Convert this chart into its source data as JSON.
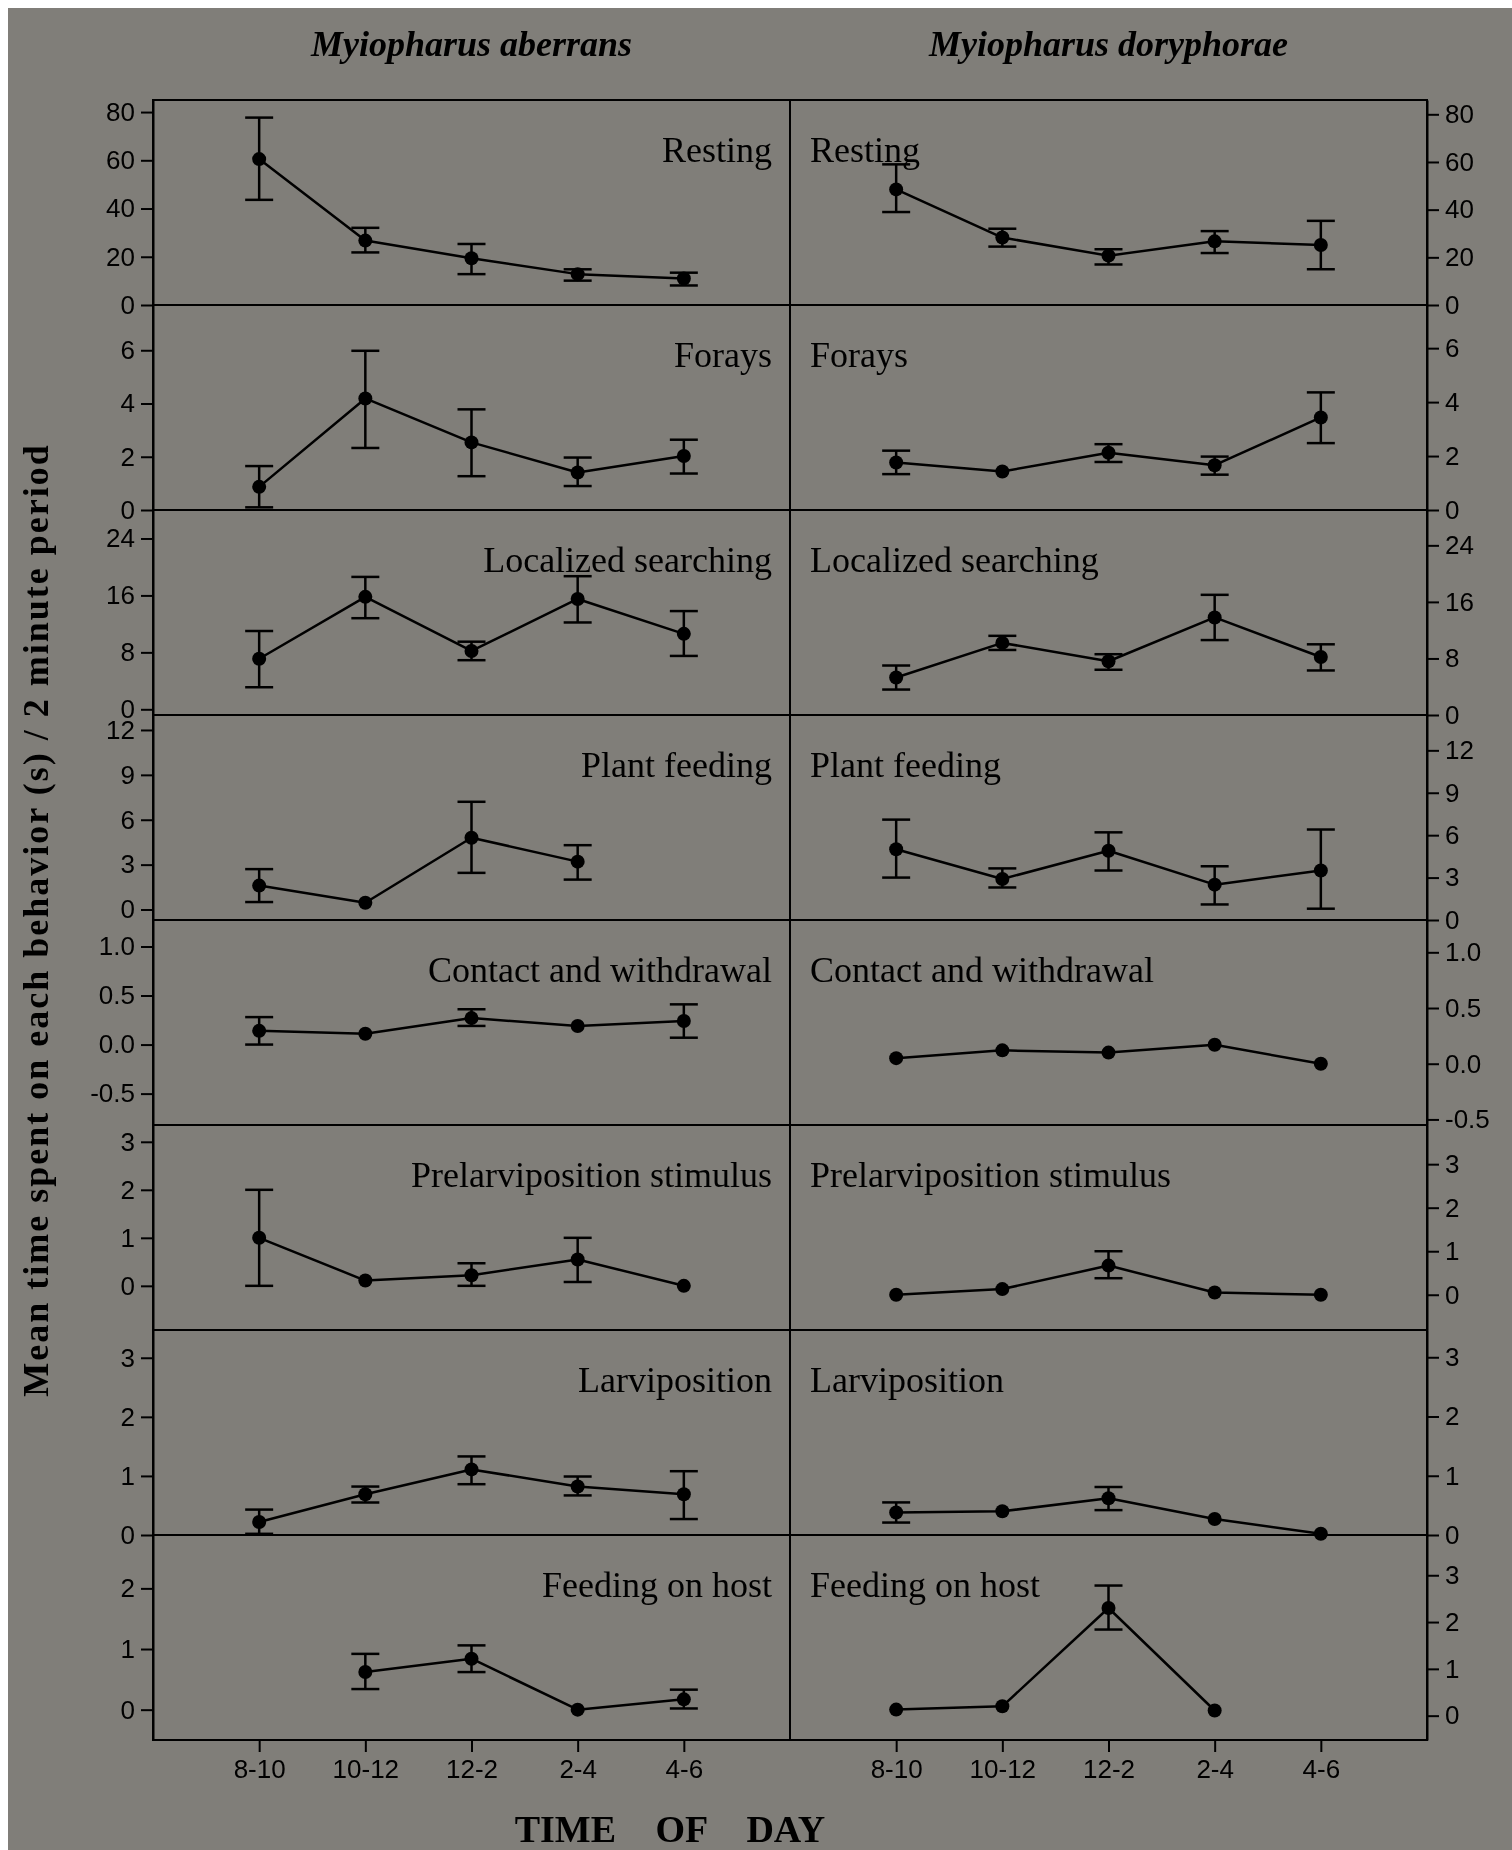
{
  "chart_data": [
    {
      "type": "line",
      "title": "Myiopharus aberrans",
      "ylabel": "Mean time spent on each behavior (s) / 2 minute period",
      "annotations": [
        "Resting"
      ],
      "categories": [
        null,
        null,
        null,
        null,
        null
      ],
      "color": "#000000",
      "marker": "circle",
      "values": [
        60.5,
        26.7,
        19.4,
        12.8,
        11
      ],
      "errors": [
        [
          43.6,
          77.7
        ],
        [
          21.8,
          32
        ],
        [
          12.8,
          25.3
        ],
        [
          10.1,
          14.8
        ],
        [
          8.1,
          13.4
        ]
      ],
      "ylim": [
        0,
        85
      ],
      "yticks": [
        0,
        20,
        40,
        60,
        80
      ]
    },
    {
      "type": "line",
      "title": "Myiopharus doryphorae",
      "annotations": [
        "Resting"
      ],
      "categories": [
        null,
        null,
        null,
        null,
        null
      ],
      "color": "#000000",
      "marker": "circle",
      "values": [
        48.5,
        28.3,
        20.7,
        26.7,
        25.2
      ],
      "errors": [
        [
          39,
          59
        ],
        [
          24.5,
          32
        ],
        [
          17,
          23.4
        ],
        [
          21.8,
          31
        ],
        [
          15,
          35.3
        ]
      ],
      "ylim": [
        0,
        86
      ],
      "yticks": [
        0,
        20,
        40,
        60,
        80
      ]
    },
    {
      "type": "line",
      "annotations": [
        "Forays"
      ],
      "categories": [
        null,
        null,
        null,
        null,
        null
      ],
      "color": "#000000",
      "marker": "circle",
      "values": [
        0.87,
        4.19,
        2.54,
        1.41,
        2.03
      ],
      "errors": [
        [
          0.1,
          1.65
        ],
        [
          2.33,
          5.98
        ],
        [
          1.27,
          3.78
        ],
        [
          0.9,
          1.97
        ],
        [
          1.37,
          2.64
        ]
      ],
      "ylim": [
        0,
        7.7
      ],
      "yticks": [
        0,
        2,
        4,
        6
      ]
    },
    {
      "type": "line",
      "annotations": [
        "Forays"
      ],
      "categories": [
        null,
        null,
        null,
        null,
        null
      ],
      "color": "#000000",
      "marker": "circle",
      "values": [
        1.76,
        1.43,
        2.12,
        1.66,
        3.43
      ],
      "errors": [
        [
          1.33,
          2.2
        ],
        null,
        [
          1.78,
          2.44
        ],
        [
          1.31,
          1.98
        ],
        [
          2.48,
          4.36
        ]
      ],
      "ylim": [
        0,
        7.6
      ],
      "yticks": [
        0,
        2,
        4,
        6
      ]
    },
    {
      "type": "line",
      "annotations": [
        "Localized searching"
      ],
      "categories": [
        null,
        null,
        null,
        null,
        null
      ],
      "color": "#000000",
      "marker": "circle",
      "values": [
        7.1,
        15.8,
        8.2,
        15.5,
        10.6
      ],
      "errors": [
        [
          3.1,
          11
        ],
        [
          12.8,
          18.6
        ],
        [
          6.9,
          9.5
        ],
        [
          12.2,
          18.7
        ],
        [
          7.5,
          13.8
        ]
      ],
      "ylim": [
        -0.8,
        28
      ],
      "yticks": [
        0,
        8,
        16,
        24
      ]
    },
    {
      "type": "line",
      "annotations": [
        "Localized searching"
      ],
      "categories": [
        null,
        null,
        null,
        null,
        null
      ],
      "color": "#000000",
      "marker": "circle",
      "values": [
        5.3,
        10.2,
        7.6,
        13.8,
        8.2
      ],
      "errors": [
        [
          3.6,
          7
        ],
        [
          9.2,
          11.2
        ],
        [
          6.4,
          8.6
        ],
        [
          10.6,
          17
        ],
        [
          6.3,
          10
        ]
      ],
      "ylim": [
        0,
        29
      ],
      "yticks": [
        0,
        8,
        16,
        24
      ]
    },
    {
      "type": "line",
      "annotations": [
        "Plant feeding"
      ],
      "categories": [
        null,
        null,
        null,
        null,
        null
      ],
      "color": "#000000",
      "marker": "circle",
      "values": [
        1.6,
        0.45,
        4.8,
        3.2,
        null
      ],
      "errors": [
        [
          0.5,
          2.7
        ],
        null,
        [
          2.45,
          7.2
        ],
        [
          2,
          4.3
        ],
        null
      ],
      "ylim": [
        -0.7,
        13
      ],
      "yticks": [
        0,
        3,
        6,
        9,
        12
      ]
    },
    {
      "type": "line",
      "annotations": [
        "Plant feeding"
      ],
      "categories": [
        null,
        null,
        null,
        null,
        null
      ],
      "color": "#000000",
      "marker": "circle",
      "values": [
        5,
        2.9,
        4.9,
        2.5,
        3.5
      ],
      "errors": [
        [
          3,
          7.1
        ],
        [
          2.3,
          3.65
        ],
        [
          3.5,
          6.2
        ],
        [
          1.1,
          3.8
        ],
        [
          0.8,
          6.4
        ]
      ],
      "ylim": [
        0,
        14.5
      ],
      "yticks": [
        0,
        3,
        6,
        9,
        12
      ]
    },
    {
      "type": "line",
      "annotations": [
        "Contact and withdrawal"
      ],
      "categories": [
        null,
        null,
        null,
        null,
        null
      ],
      "color": "#000000",
      "marker": "circle",
      "values": [
        0.14,
        0.11,
        0.27,
        0.19,
        0.24
      ],
      "errors": [
        [
          0,
          0.28
        ],
        null,
        [
          0.19,
          0.36
        ],
        null,
        [
          0.07,
          0.41
        ]
      ],
      "ylim": [
        -0.82,
        1.27
      ],
      "yticks": [
        {
          "value": -0.5,
          "label": "-0.5"
        },
        {
          "value": 0,
          "label": "0.0"
        },
        0.5,
        {
          "value": 1,
          "label": "1.0"
        }
      ]
    },
    {
      "type": "line",
      "annotations": [
        "Contact and withdrawal"
      ],
      "categories": [
        null,
        null,
        null,
        null,
        null
      ],
      "color": "#000000",
      "marker": "circle",
      "values": [
        0.05,
        0.12,
        0.1,
        0.17,
        0
      ],
      "ylim": [
        -0.55,
        1.29
      ],
      "yticks": [
        {
          "value": -0.5,
          "label": "-0.5"
        },
        {
          "value": 0,
          "label": "0.0"
        },
        0.5,
        {
          "value": 1,
          "label": "1.0"
        }
      ]
    },
    {
      "type": "line",
      "annotations": [
        "Prelarviposition stimulus"
      ],
      "categories": [
        null,
        null,
        null,
        null,
        null
      ],
      "color": "#000000",
      "marker": "circle",
      "values": [
        1,
        0.11,
        0.22,
        0.55,
        0
      ],
      "errors": [
        [
          0,
          2
        ],
        null,
        [
          0,
          0.47
        ],
        [
          0.08,
          1
        ],
        null
      ],
      "ylim": [
        -0.92,
        3.35
      ],
      "yticks": [
        0,
        1,
        2,
        3
      ]
    },
    {
      "type": "line",
      "annotations": [
        "Prelarviposition stimulus"
      ],
      "categories": [
        null,
        null,
        null,
        null,
        null
      ],
      "color": "#000000",
      "marker": "circle",
      "values": [
        0,
        0.13,
        0.67,
        0.05,
        0
      ],
      "errors": [
        null,
        null,
        [
          0.38,
          1
        ],
        null,
        null
      ],
      "ylim": [
        -0.81,
        3.9
      ],
      "yticks": [
        0,
        1,
        2,
        3
      ]
    },
    {
      "type": "line",
      "annotations": [
        "Larviposition"
      ],
      "categories": [
        null,
        null,
        null,
        null,
        null
      ],
      "color": "#000000",
      "marker": "circle",
      "values": [
        0.22,
        0.69,
        1.11,
        0.82,
        0.69
      ],
      "errors": [
        [
          0.02,
          0.43
        ],
        [
          0.55,
          0.82
        ],
        [
          0.86,
          1.33
        ],
        [
          0.67,
          0.99
        ],
        [
          0.27,
          1.08
        ]
      ],
      "ylim": [
        0,
        3.47
      ],
      "yticks": [
        0,
        1,
        2,
        3
      ]
    },
    {
      "type": "line",
      "annotations": [
        "Larviposition"
      ],
      "categories": [
        null,
        null,
        null,
        null,
        null
      ],
      "color": "#000000",
      "marker": "circle",
      "values": [
        0.38,
        0.4,
        0.62,
        0.27,
        0.02
      ],
      "errors": [
        [
          0.21,
          0.55
        ],
        null,
        [
          0.42,
          0.81
        ],
        null,
        null
      ],
      "ylim": [
        0,
        3.46
      ],
      "yticks": [
        0,
        1,
        2,
        3
      ]
    },
    {
      "type": "line",
      "xlabel": "TIME OF DAY",
      "annotations": [
        "Feeding on host"
      ],
      "categories": [
        "8-10",
        "10-12",
        "12-2",
        "2-4",
        "4-6"
      ],
      "color": "#000000",
      "marker": "circle",
      "values": [
        null,
        0.62,
        0.84,
        0,
        0.17
      ],
      "errors": [
        null,
        [
          0.34,
          0.92
        ],
        [
          0.62,
          1.06
        ],
        null,
        [
          0.02,
          0.33
        ]
      ],
      "ylim": [
        -0.5,
        2.88
      ],
      "yticks": [
        0,
        1,
        2
      ]
    },
    {
      "type": "line",
      "annotations": [
        "Feeding on host"
      ],
      "categories": [
        "8-10",
        "10-12",
        "12-2",
        "2-4",
        "4-6"
      ],
      "color": "#000000",
      "marker": "circle",
      "values": [
        0.13,
        0.2,
        2.3,
        0.11,
        null
      ],
      "errors": [
        null,
        null,
        [
          1.84,
          2.78
        ],
        null,
        null
      ],
      "ylim": [
        -0.52,
        3.86
      ],
      "yticks": [
        0,
        1,
        2,
        3
      ]
    }
  ]
}
